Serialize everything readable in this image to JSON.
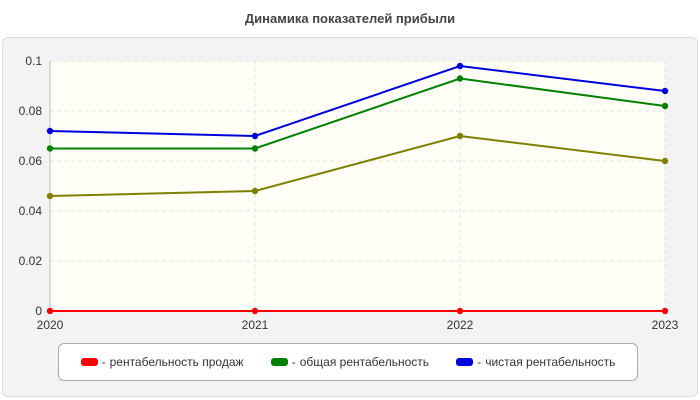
{
  "chart_data": {
    "type": "line",
    "title": "Динамика показателей прибыли",
    "x": [
      "2020",
      "2021",
      "2022",
      "2023"
    ],
    "ylim": [
      0,
      0.1
    ],
    "yticks": [
      "0",
      "0.02",
      "0.04",
      "0.06",
      "0.08",
      "0.1"
    ],
    "grid": true,
    "legend_position": "bottom",
    "legend_prefix": "-",
    "series": [
      {
        "name": "рентабельность продаж",
        "color": "#ff0000",
        "values": [
          0,
          0,
          0,
          0
        ]
      },
      {
        "name": "общая рентабельность",
        "color": "#008000",
        "values": [
          0.065,
          0.065,
          0.093,
          0.082
        ]
      },
      {
        "name": "чистая рентабельность",
        "color": "#0000dd",
        "values": [
          0.072,
          0.07,
          0.098,
          0.088
        ]
      },
      {
        "color": "#808000",
        "values": [
          0.046,
          0.048,
          0.07,
          0.06
        ]
      }
    ]
  }
}
